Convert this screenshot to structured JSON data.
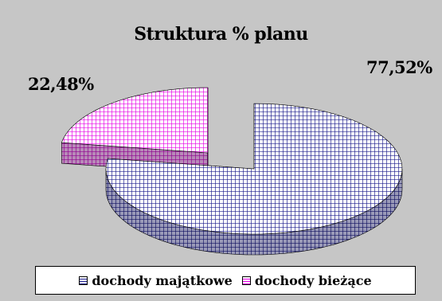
{
  "chart_data": {
    "type": "pie",
    "title": "Struktura % planu",
    "categories": [
      "dochody majątkowe",
      "dochody bieżące"
    ],
    "values": [
      77.52,
      22.48
    ],
    "labels": [
      "77,52%",
      "22,48%"
    ],
    "colors": [
      "#1a1a8c",
      "#e600e6"
    ],
    "legend_position": "bottom",
    "style": "3d-exploded"
  }
}
